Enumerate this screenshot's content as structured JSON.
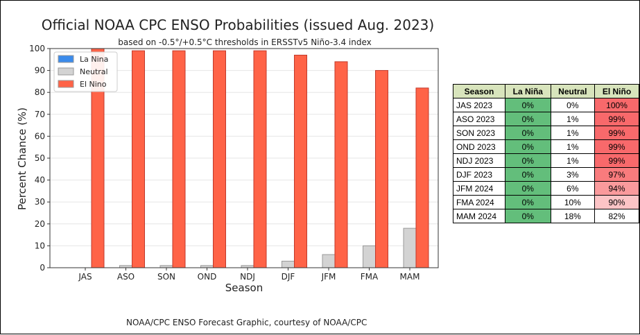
{
  "credit": "NOAA/CPC ENSO Forecast Graphic, courtesy of NOAA/CPC",
  "chart_data": {
    "type": "bar",
    "title": "Official NOAA CPC ENSO Probabilities (issued Aug. 2023)",
    "subtitle": "based on -0.5°/+0.5°C thresholds in ERSSTv5 Niño-3.4 index",
    "xlabel": "Season",
    "ylabel": "Percent Chance (%)",
    "ylim": [
      0,
      100
    ],
    "yticks": [
      0,
      10,
      20,
      30,
      40,
      50,
      60,
      70,
      80,
      90,
      100
    ],
    "grid": true,
    "legend": "top-left",
    "categories": [
      "JAS",
      "ASO",
      "SON",
      "OND",
      "NDJ",
      "DJF",
      "JFM",
      "FMA",
      "MAM"
    ],
    "series": [
      {
        "name": "La Nina",
        "color": "#3b8beb",
        "values": [
          0,
          0,
          0,
          0,
          0,
          0,
          0,
          0,
          0
        ]
      },
      {
        "name": "Neutral",
        "color": "#d3d3d3",
        "values": [
          0,
          1,
          1,
          1,
          1,
          3,
          6,
          10,
          18
        ]
      },
      {
        "name": "El Nino",
        "color": "#ff6347",
        "values": [
          100,
          99,
          99,
          99,
          99,
          97,
          94,
          90,
          82
        ]
      }
    ]
  },
  "table": {
    "headers": [
      "Season",
      "La Niña",
      "Neutral",
      "El Niño"
    ],
    "rows": [
      {
        "season": "JAS 2023",
        "lanina": "0%",
        "neutral": "0%",
        "elnino": "100%",
        "elnino_color": "#f8696b"
      },
      {
        "season": "ASO 2023",
        "lanina": "0%",
        "neutral": "1%",
        "elnino": "99%",
        "elnino_color": "#f8696b"
      },
      {
        "season": "SON 2023",
        "lanina": "0%",
        "neutral": "1%",
        "elnino": "99%",
        "elnino_color": "#f8696b"
      },
      {
        "season": "OND 2023",
        "lanina": "0%",
        "neutral": "1%",
        "elnino": "99%",
        "elnino_color": "#f8696b"
      },
      {
        "season": "NDJ 2023",
        "lanina": "0%",
        "neutral": "1%",
        "elnino": "99%",
        "elnino_color": "#f8696b"
      },
      {
        "season": "DJF 2023",
        "lanina": "0%",
        "neutral": "3%",
        "elnino": "97%",
        "elnino_color": "#f97b7d"
      },
      {
        "season": "JFM 2024",
        "lanina": "0%",
        "neutral": "6%",
        "elnino": "94%",
        "elnino_color": "#fa9a9c"
      },
      {
        "season": "FMA 2024",
        "lanina": "0%",
        "neutral": "10%",
        "elnino": "90%",
        "elnino_color": "#fcc4c6"
      },
      {
        "season": "MAM 2024",
        "lanina": "0%",
        "neutral": "18%",
        "elnino": "82%",
        "elnino_color": "#ffffff"
      }
    ]
  }
}
